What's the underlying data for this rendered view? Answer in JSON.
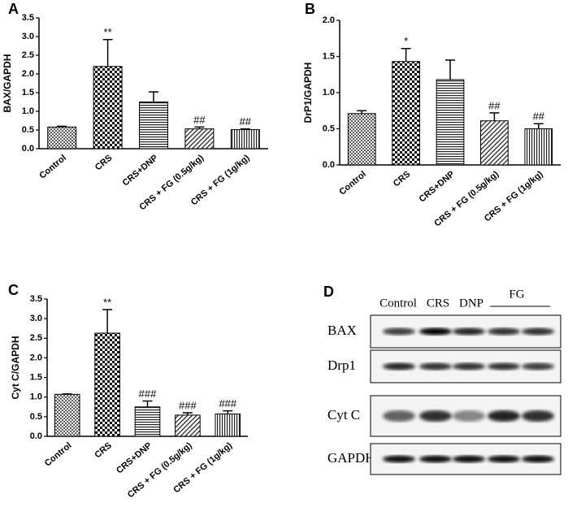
{
  "chart_data": [
    {
      "type": "bar",
      "panel_label": "A",
      "ylabel": "BAX/GAPDH",
      "categories": [
        "Control",
        "CRS",
        "CRS+DNP",
        "CRS + FG (0.5g/kg)",
        "CRS + FG (1g/kg)"
      ],
      "values": [
        0.58,
        2.2,
        1.25,
        0.53,
        0.51
      ],
      "errors": [
        0.02,
        0.72,
        0.27,
        0.05,
        0.02
      ],
      "annotations": [
        null,
        "**",
        null,
        "##",
        "##"
      ],
      "ylim": [
        0,
        3.5
      ],
      "yticks": [
        {
          "value": 0,
          "label": "0.0"
        },
        0.5,
        {
          "value": 1,
          "label": "1.0"
        },
        1.5,
        {
          "value": 2,
          "label": "2.0"
        },
        2.5,
        {
          "value": 3,
          "label": "3.0"
        },
        3.5
      ]
    },
    {
      "type": "bar",
      "panel_label": "B",
      "ylabel": "DrP1/GAPDH",
      "categories": [
        "Control",
        "CRS",
        "CRS+DNP",
        "CRS + FG (0.5g/kg)",
        "CRS + FG (1g/kg)"
      ],
      "values": [
        0.71,
        1.43,
        1.18,
        0.61,
        0.5
      ],
      "errors": [
        0.04,
        0.18,
        0.27,
        0.11,
        0.07
      ],
      "annotations": [
        null,
        "*",
        null,
        "##",
        "##"
      ],
      "ylim": [
        0,
        2
      ],
      "yticks": [
        {
          "value": 0,
          "label": "0.0"
        },
        0.5,
        {
          "value": 1,
          "label": "1.0"
        },
        1.5,
        {
          "value": 2,
          "label": "2.0"
        }
      ]
    },
    {
      "type": "bar",
      "panel_label": "C",
      "ylabel": "Cyt C/GAPDH",
      "categories": [
        "Control",
        "CRS",
        "CRS+DNP",
        "CRS + FG (0.5g/kg)",
        "CRS + FG (1g/kg)"
      ],
      "values": [
        1.07,
        2.63,
        0.75,
        0.54,
        0.57
      ],
      "errors": [
        0.01,
        0.6,
        0.15,
        0.06,
        0.08
      ],
      "annotations": [
        null,
        "**",
        "###",
        "###",
        "###"
      ],
      "ylim": [
        0,
        3.5
      ],
      "yticks": [
        {
          "value": 0,
          "label": "0.0"
        },
        0.5,
        {
          "value": 1,
          "label": "1.0"
        },
        1.5,
        {
          "value": 2,
          "label": "2.0"
        },
        2.5,
        {
          "value": 3,
          "label": "3.0"
        },
        3.5
      ]
    }
  ],
  "blot": {
    "panel_label": "D",
    "lanes": [
      "Control",
      "CRS",
      "DNP"
    ],
    "group_label": "FG",
    "rows": [
      "BAX",
      "Drp1",
      "Cyt C",
      "GAPDH"
    ]
  }
}
